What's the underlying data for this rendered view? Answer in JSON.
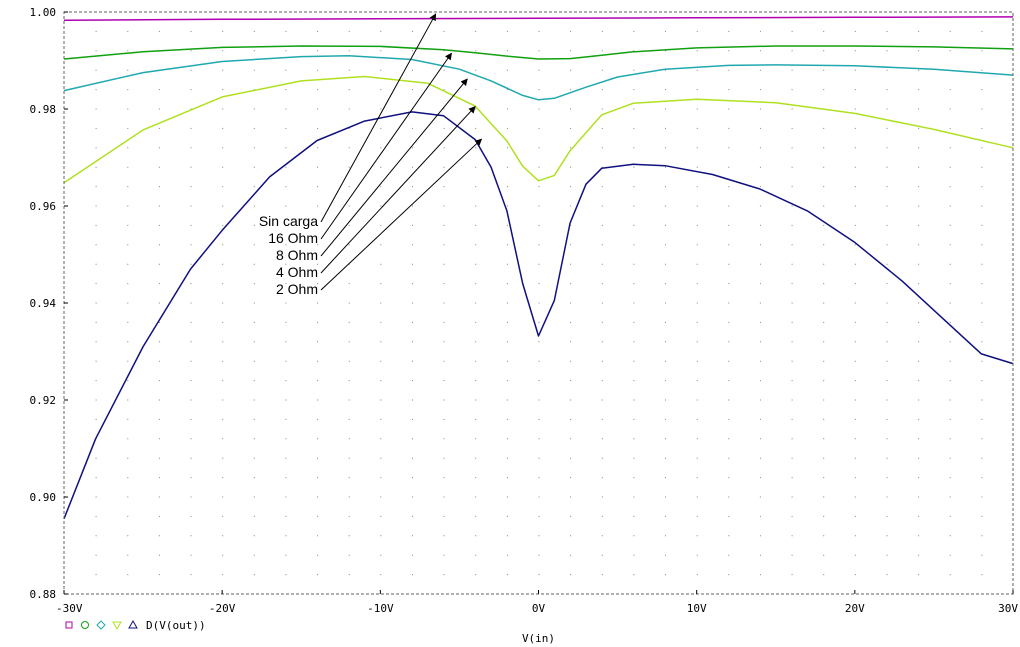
{
  "chart_data": {
    "type": "line",
    "xlabel": "V(in)",
    "ylabel": "",
    "xlim": [
      -30,
      30
    ],
    "ylim": [
      0.88,
      1.0
    ],
    "x_tick_labels": [
      "-30V",
      "-20V",
      "-10V",
      "0V",
      "10V",
      "20V",
      "30V"
    ],
    "y_tick_labels": [
      "0.88",
      "0.90",
      "0.92",
      "0.94",
      "0.96",
      "0.98",
      "1.00"
    ],
    "grid": "dotted",
    "legend_text": "D(V(out))",
    "series": [
      {
        "name": "Sin carga",
        "color": "#b000b0",
        "marker": "square",
        "x": [
          -30,
          -20,
          -10,
          0,
          10,
          20,
          30
        ],
        "y": [
          0.9983,
          0.9985,
          0.9986,
          0.9987,
          0.9988,
          0.9989,
          0.999
        ]
      },
      {
        "name": "16 Ohm",
        "color": "#10a010",
        "marker": "circle",
        "x": [
          -30,
          -25,
          -20,
          -15,
          -10,
          -6,
          -4,
          -2,
          0,
          2,
          4,
          6,
          10,
          15,
          20,
          25,
          30
        ],
        "y": [
          0.9903,
          0.9918,
          0.9927,
          0.993,
          0.9929,
          0.9922,
          0.9916,
          0.9909,
          0.9903,
          0.9904,
          0.9911,
          0.9918,
          0.9926,
          0.993,
          0.993,
          0.9928,
          0.9924
        ]
      },
      {
        "name": "8 Ohm",
        "color": "#20a8b0",
        "marker": "diamond",
        "x": [
          -30,
          -25,
          -20,
          -15,
          -12,
          -8,
          -5,
          -3,
          -1,
          0,
          1,
          3,
          5,
          8,
          12,
          15,
          20,
          25,
          30
        ],
        "y": [
          0.9838,
          0.9875,
          0.9898,
          0.9908,
          0.991,
          0.9902,
          0.9882,
          0.9858,
          0.9828,
          0.9819,
          0.9822,
          0.9845,
          0.9866,
          0.9882,
          0.989,
          0.9891,
          0.9889,
          0.9882,
          0.987
        ]
      },
      {
        "name": "4 Ohm",
        "color": "#b0e020",
        "marker": "triangle-down",
        "x": [
          -30,
          -25,
          -20,
          -15,
          -11,
          -7,
          -4,
          -2,
          -1,
          0,
          1,
          2,
          4,
          6,
          10,
          15,
          20,
          25,
          30
        ],
        "y": [
          0.9648,
          0.9757,
          0.9825,
          0.9858,
          0.9867,
          0.9853,
          0.9806,
          0.9734,
          0.9682,
          0.9652,
          0.9663,
          0.9714,
          0.9788,
          0.9812,
          0.982,
          0.9813,
          0.9791,
          0.9758,
          0.972
        ]
      },
      {
        "name": "2 Ohm",
        "color": "#101080",
        "marker": "triangle-up",
        "x": [
          -30,
          -28,
          -25,
          -22,
          -20,
          -17,
          -14,
          -11,
          -8,
          -6,
          -4,
          -3,
          -2,
          -1,
          0,
          1,
          2,
          3,
          4,
          6,
          8,
          11,
          14,
          17,
          20,
          23,
          26,
          28,
          30
        ],
        "y": [
          0.8955,
          0.912,
          0.931,
          0.947,
          0.955,
          0.966,
          0.9735,
          0.9775,
          0.9794,
          0.9786,
          0.9737,
          0.968,
          0.959,
          0.944,
          0.9332,
          0.9405,
          0.9565,
          0.9645,
          0.9678,
          0.9686,
          0.9683,
          0.9665,
          0.9635,
          0.959,
          0.9525,
          0.9445,
          0.9355,
          0.9295,
          0.9275
        ]
      }
    ],
    "annotations": [
      {
        "text": "Sin carga",
        "arrow_to": {
          "x": -6.5,
          "y": 0.9996
        }
      },
      {
        "text": "16 Ohm",
        "arrow_to": {
          "x": -5.5,
          "y": 0.9915
        }
      },
      {
        "text": "8 Ohm",
        "arrow_to": {
          "x": -4.5,
          "y": 0.9862
        }
      },
      {
        "text": "4 Ohm",
        "arrow_to": {
          "x": -4.0,
          "y": 0.9805
        }
      },
      {
        "text": "2 Ohm",
        "arrow_to": {
          "x": -3.6,
          "y": 0.9738
        }
      }
    ]
  }
}
